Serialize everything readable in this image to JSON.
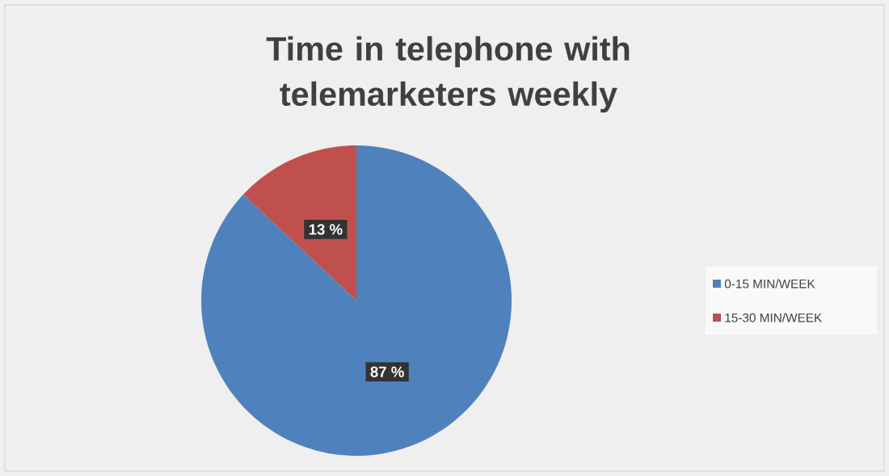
{
  "chart_data": {
    "type": "pie",
    "title": "Time in telephone with telemarketers weekly",
    "categories": [
      "0-15 MIN/WEEK",
      "15-30 MIN/WEEK"
    ],
    "values": [
      87,
      13
    ],
    "colors": [
      "#4f81bd",
      "#c0504d"
    ],
    "value_labels": [
      "87 %",
      "13 %"
    ],
    "legend": "right"
  }
}
